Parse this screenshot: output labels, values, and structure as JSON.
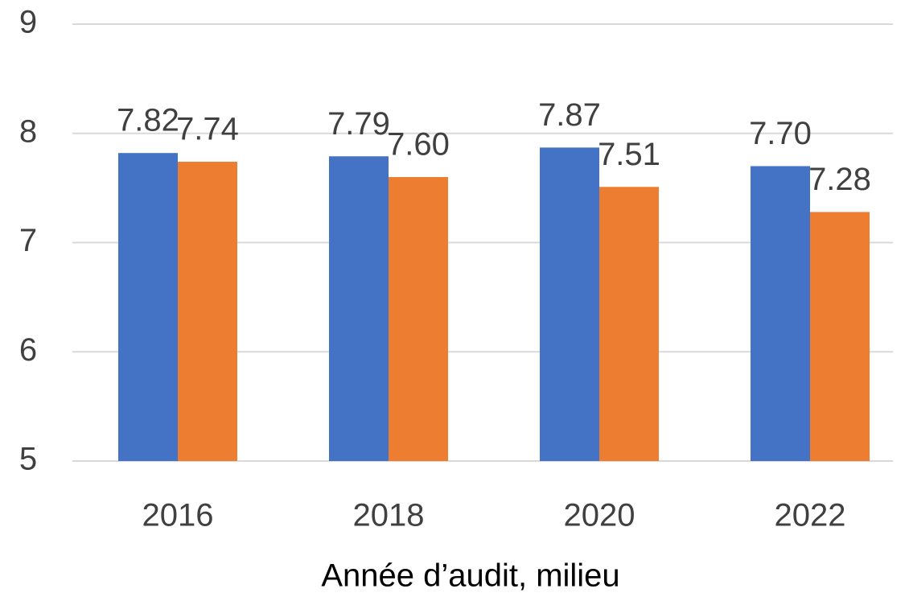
{
  "chart_data": {
    "type": "bar",
    "categories": [
      "2016",
      "2018",
      "2020",
      "2022"
    ],
    "series": [
      {
        "color": "#4472c4",
        "values": [
          7.82,
          7.79,
          7.87,
          7.7
        ],
        "value_labels": [
          "7.82",
          "7.79",
          "7.87",
          "7.70"
        ]
      },
      {
        "color": "#ed7d31",
        "values": [
          7.74,
          7.6,
          7.51,
          7.28
        ],
        "value_labels": [
          "7.74",
          "7.60",
          "7.51",
          "7.28"
        ]
      }
    ],
    "x_label": "Année d’audit, milieu",
    "ylim": [
      5,
      9
    ],
    "yticks": [
      5,
      6,
      7,
      8,
      9
    ],
    "grid": true
  }
}
